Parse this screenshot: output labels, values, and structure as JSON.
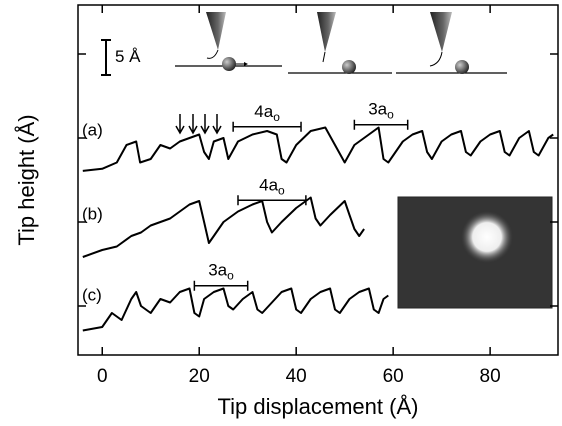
{
  "chart_data": {
    "type": "line",
    "x_label": "Tip displacement (Å)",
    "y_label": "Tip height (Å)",
    "xlim": [
      -5,
      94
    ],
    "xticks": [
      0,
      20,
      40,
      60,
      80
    ],
    "ylim": [
      0,
      50
    ],
    "yticks": [
      7,
      19,
      31,
      43
    ],
    "scale_bar": {
      "label": "5 Å",
      "value": 5
    },
    "series": [
      {
        "name": "(a)",
        "color": "#000000",
        "x": [
          -4,
          0,
          3,
          5,
          7,
          7.8,
          10,
          12,
          14,
          16,
          18,
          20,
          21,
          22,
          23,
          25,
          26,
          28,
          31,
          34,
          36,
          37,
          38,
          40,
          43,
          46,
          48,
          50,
          52,
          55,
          57,
          58,
          59,
          62,
          64,
          66,
          67,
          68,
          70,
          72,
          74,
          75,
          76,
          78,
          80,
          82,
          83,
          84,
          86,
          88,
          89,
          90,
          92,
          93
        ],
        "values": [
          26.3,
          26.6,
          27.5,
          30,
          30.5,
          27.5,
          28,
          30,
          29.5,
          30.5,
          31,
          31.5,
          29,
          28,
          30.5,
          31,
          28,
          30.5,
          31.5,
          32,
          31.5,
          28,
          27.5,
          30,
          32,
          32.5,
          30,
          27.5,
          30,
          31.5,
          32.5,
          28,
          27.5,
          30.5,
          31.5,
          32,
          29,
          28,
          30.5,
          31.5,
          32,
          29,
          28.5,
          30.5,
          31.5,
          32,
          29,
          28.5,
          31,
          32,
          29,
          28.5,
          31,
          31.5
        ]
      },
      {
        "name": "(b)",
        "color": "#000000",
        "x": [
          -4,
          0,
          3,
          6,
          8,
          10,
          12,
          14,
          16,
          18,
          20,
          21,
          22,
          23,
          25,
          28,
          31,
          33,
          34,
          35,
          37,
          40,
          43,
          44,
          45,
          47,
          50,
          51,
          52,
          53,
          54
        ],
        "values": [
          14,
          15,
          15.5,
          17,
          17.5,
          18.5,
          19,
          19.5,
          20.5,
          21.5,
          22,
          19,
          16,
          17,
          19,
          20.5,
          21.5,
          22,
          19,
          17.5,
          19,
          21,
          22.5,
          19.5,
          18.5,
          20,
          22,
          20,
          18,
          17,
          18
        ]
      },
      {
        "name": "(c)",
        "color": "#000000",
        "x": [
          -4,
          0,
          2,
          4,
          6,
          7,
          8,
          10,
          12,
          14,
          16,
          18,
          19,
          20,
          21,
          23,
          25,
          26,
          27,
          29,
          31,
          32,
          33,
          35,
          37,
          39,
          40,
          41,
          43,
          45,
          47,
          48,
          49,
          51,
          53,
          55,
          56,
          57,
          58,
          59
        ],
        "values": [
          3.5,
          4,
          6,
          5,
          8,
          9,
          7,
          6,
          8,
          7.5,
          9,
          9.5,
          6,
          5.5,
          8,
          9,
          9.5,
          7,
          6.5,
          8,
          9,
          6.5,
          6,
          7.5,
          9,
          9.5,
          6.5,
          6,
          8,
          9,
          9.5,
          6.5,
          6,
          8,
          9,
          9.5,
          6.5,
          6,
          8,
          8.5
        ]
      }
    ],
    "annotations": [
      {
        "text": "4a",
        "sub": "o",
        "x": [
          27,
          41
        ],
        "y": 32.6
      },
      {
        "text": "3a",
        "sub": "o",
        "x": [
          52,
          63
        ],
        "y": 32.9
      },
      {
        "text": "4a",
        "sub": "o",
        "x": [
          28,
          42
        ],
        "y": 22.1
      },
      {
        "text": "3a",
        "sub": "o",
        "x": [
          19,
          30
        ],
        "y": 9.9
      }
    ]
  }
}
